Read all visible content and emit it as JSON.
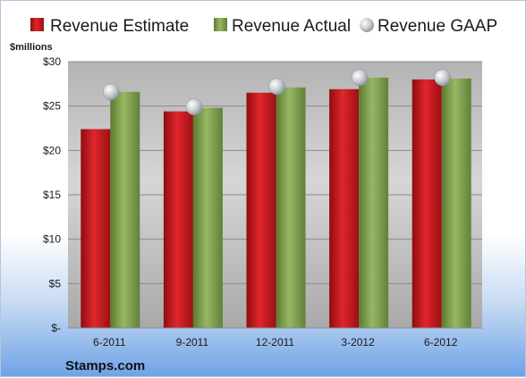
{
  "chart_data": {
    "type": "bar",
    "categories": [
      "6-2011",
      "9-2011",
      "12-2011",
      "3-2012",
      "6-2012"
    ],
    "series": [
      {
        "name": "Revenue Estimate",
        "values": [
          22.4,
          24.4,
          26.5,
          26.9,
          28.0
        ],
        "color": "#c8161b",
        "kind": "bar"
      },
      {
        "name": "Revenue Actual",
        "values": [
          26.6,
          24.8,
          27.1,
          28.2,
          28.1
        ],
        "color": "#7f9d4b",
        "kind": "bar"
      },
      {
        "name": "Revenue GAAP",
        "values": [
          26.6,
          24.9,
          27.2,
          28.2,
          28.2
        ],
        "color": "#b8bcc4",
        "kind": "marker"
      }
    ],
    "yticks": [
      "$-",
      "$5",
      "$10",
      "$15",
      "$20",
      "$25",
      "$30"
    ],
    "ylim": [
      0,
      30
    ],
    "ylabel": "$millions",
    "grid": true,
    "legend": "top"
  },
  "source_label": "Stamps.com"
}
